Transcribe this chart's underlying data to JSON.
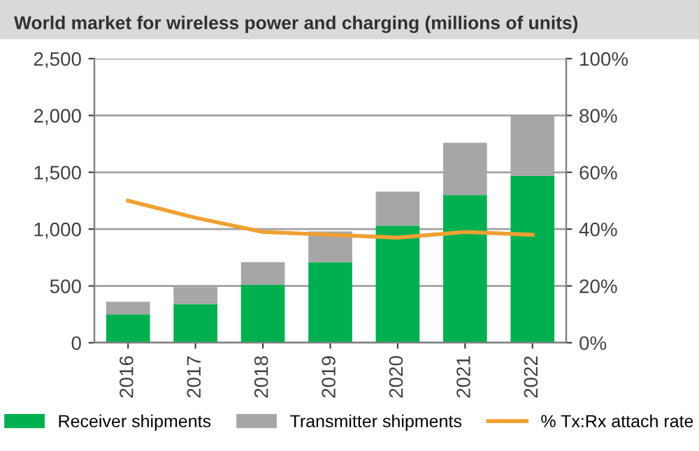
{
  "chart_data": {
    "type": "bar",
    "title": "World market for wireless power and charging (millions of units)",
    "categories": [
      "2016",
      "2017",
      "2018",
      "2019",
      "2020",
      "2021",
      "2022"
    ],
    "stacked": true,
    "series": [
      {
        "name": "Receiver shipments",
        "color": "#00b050",
        "values": [
          250,
          340,
          510,
          710,
          1030,
          1300,
          1470
        ]
      },
      {
        "name": "Transmitter shipments",
        "color": "#a6a6a6",
        "values": [
          110,
          150,
          200,
          270,
          300,
          460,
          530
        ]
      },
      {
        "name": "% Tx:Rx attach rate",
        "type": "line",
        "axis": "y2",
        "color": "#f0a030",
        "values": [
          50,
          44,
          39,
          38,
          37,
          39,
          38
        ]
      }
    ],
    "ylim": [
      0,
      2500
    ],
    "yticks": [
      0,
      500,
      {
        "value": 1000,
        "label": "1,000"
      },
      {
        "value": 1500,
        "label": "1,500"
      },
      {
        "value": 2000,
        "label": "2,000"
      },
      {
        "value": 2500,
        "label": "2,500"
      }
    ],
    "y2lim": [
      0,
      100
    ],
    "y2ticks": [
      {
        "value": 0,
        "label": "0%"
      },
      {
        "value": 20,
        "label": "20%"
      },
      {
        "value": 40,
        "label": "40%"
      },
      {
        "value": 60,
        "label": "60%"
      },
      {
        "value": 80,
        "label": "80%"
      },
      {
        "value": 100,
        "label": "100%"
      }
    ],
    "grid": "y",
    "legend": "bottom"
  }
}
